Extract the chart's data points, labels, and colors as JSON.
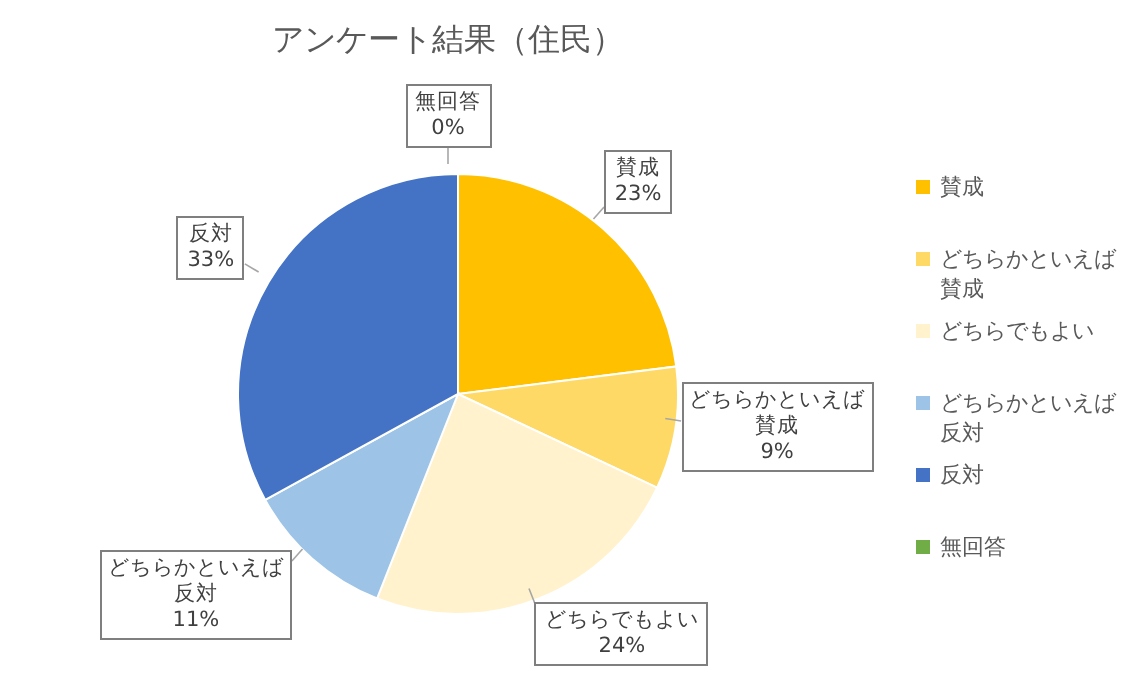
{
  "chart_data": {
    "type": "pie",
    "title": "アンケート結果（住民）",
    "categories": [
      "賛成",
      "どちらかといえば賛成",
      "どちらでもよい",
      "どちらかといえば反対",
      "反対",
      "無回答"
    ],
    "values": [
      23,
      9,
      24,
      11,
      33,
      0
    ],
    "value_labels": [
      "23%",
      "9%",
      "24%",
      "11%",
      "33%",
      "0%"
    ],
    "colors": [
      "#ffc000",
      "#ffd966",
      "#fff2cc",
      "#9dc3e6",
      "#4472c4",
      "#70ad47"
    ],
    "legend": "right"
  }
}
